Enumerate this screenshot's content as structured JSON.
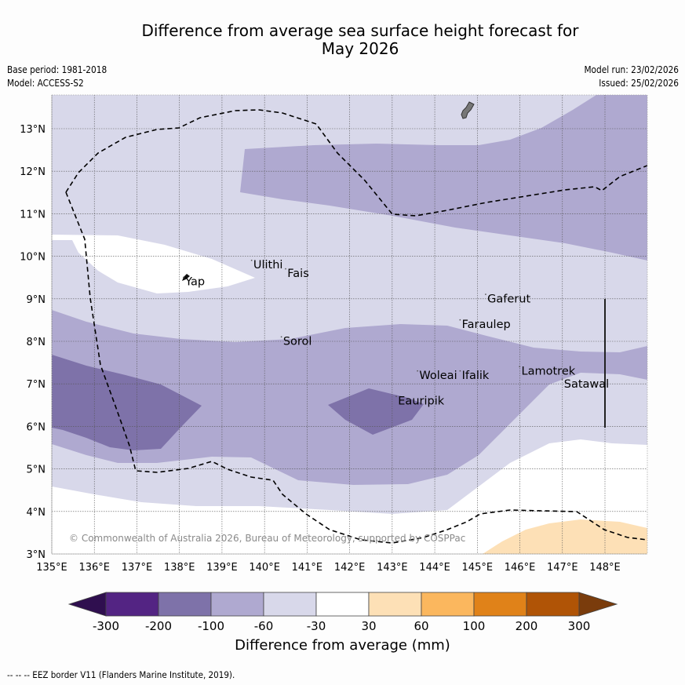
{
  "header": {
    "title_line1": "Difference from average sea surface height forecast for",
    "title_line2": "May 2026",
    "base_period": "Base period: 1981-2018",
    "model": "Model: ACCESS-S2",
    "model_run": "Model run: 23/02/2026",
    "issued": "Issued: 25/02/2026"
  },
  "map": {
    "lon_ticks": [
      "135°E",
      "136°E",
      "137°E",
      "138°E",
      "139°E",
      "140°E",
      "141°E",
      "142°E",
      "143°E",
      "144°E",
      "145°E",
      "146°E",
      "147°E",
      "148°E"
    ],
    "lat_ticks": [
      "3°N",
      "4°N",
      "5°N",
      "6°N",
      "7°N",
      "8°N",
      "9°N",
      "10°N",
      "11°N",
      "12°N",
      "13°N"
    ],
    "lon_range": [
      135,
      149
    ],
    "lat_range": [
      3,
      13.8
    ],
    "places": [
      {
        "name": "Yap",
        "lon": 138.1,
        "lat": 9.5
      },
      {
        "name": "Ulithi",
        "lon": 139.7,
        "lat": 9.9
      },
      {
        "name": "Fais",
        "lon": 140.5,
        "lat": 9.7
      },
      {
        "name": "Sorol",
        "lon": 140.4,
        "lat": 8.1
      },
      {
        "name": "Gaferut",
        "lon": 145.2,
        "lat": 9.1
      },
      {
        "name": "Faraulep",
        "lon": 144.6,
        "lat": 8.5
      },
      {
        "name": "Woleai",
        "lon": 143.6,
        "lat": 7.3
      },
      {
        "name": "Ifalik",
        "lon": 144.6,
        "lat": 7.3
      },
      {
        "name": "Lamotrek",
        "lon": 146.0,
        "lat": 7.4
      },
      {
        "name": "Satawal",
        "lon": 147.0,
        "lat": 7.1
      },
      {
        "name": "Eauripik",
        "lon": 143.1,
        "lat": 6.7
      }
    ],
    "copyright": "© Commonwealth of Australia 2026, Bureau of Meteorology, supported by COSPPac"
  },
  "colorbar": {
    "label": "Difference from average (mm)",
    "ticks": [
      "-300",
      "-200",
      "-100",
      "-60",
      "-30",
      "30",
      "60",
      "100",
      "200",
      "300"
    ],
    "colors": {
      "under": "#2f0f4f",
      "bins": [
        "#532483",
        "#7e72a9",
        "#afa9d0",
        "#d8d8ea",
        "#ffffff",
        "#fde0b6",
        "#fbb75e",
        "#e08219",
        "#b05406"
      ],
      "over": "#7a3c0c"
    }
  },
  "footer": {
    "eez_note": "--  --  -- EEZ border V11 (Flanders Marine Institute, 2019)."
  }
}
